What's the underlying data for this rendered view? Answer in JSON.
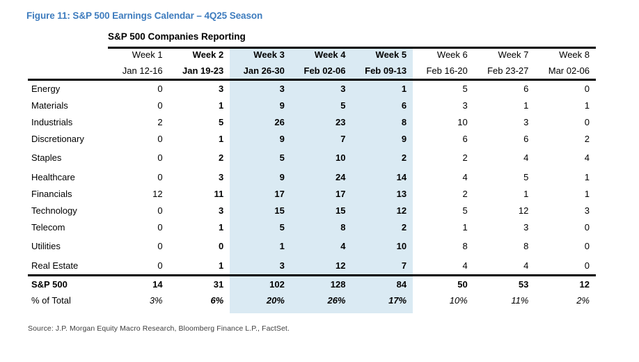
{
  "figure_title": "Figure 11: S&P 500 Earnings Calendar – 4Q25 Season",
  "table_title": "S&P 500 Companies Reporting",
  "colors": {
    "title_blue": "#3E7CBE",
    "highlight_blue": "#DAEAF3",
    "rule_black": "#000000"
  },
  "highlighted_weeks": [
    "Week 3",
    "Week 4",
    "Week 5"
  ],
  "bold_weeks": [
    "Week 2",
    "Week 3",
    "Week 4",
    "Week 5"
  ],
  "table": {
    "columns": [
      {
        "week": "Week 1",
        "dates": "Jan 12-16"
      },
      {
        "week": "Week 2",
        "dates": "Jan 19-23"
      },
      {
        "week": "Week 3",
        "dates": "Jan 26-30"
      },
      {
        "week": "Week 4",
        "dates": "Feb 02-06"
      },
      {
        "week": "Week 5",
        "dates": "Feb 09-13"
      },
      {
        "week": "Week 6",
        "dates": "Feb 16-20"
      },
      {
        "week": "Week 7",
        "dates": "Feb 23-27"
      },
      {
        "week": "Week 8",
        "dates": "Mar 02-06"
      }
    ],
    "rows": [
      {
        "label": "Energy",
        "values": [
          0,
          3,
          3,
          3,
          1,
          5,
          6,
          0
        ]
      },
      {
        "label": "Materials",
        "values": [
          0,
          1,
          9,
          5,
          6,
          3,
          1,
          1
        ]
      },
      {
        "label": "Industrials",
        "values": [
          2,
          5,
          26,
          23,
          8,
          10,
          3,
          0
        ]
      },
      {
        "label": "Discretionary",
        "values": [
          0,
          1,
          9,
          7,
          9,
          6,
          6,
          2
        ]
      },
      {
        "label": "Staples",
        "values": [
          0,
          2,
          5,
          10,
          2,
          2,
          4,
          4
        ]
      },
      {
        "label": "Healthcare",
        "values": [
          0,
          3,
          9,
          24,
          14,
          4,
          5,
          1
        ]
      },
      {
        "label": "Financials",
        "values": [
          12,
          11,
          17,
          17,
          13,
          2,
          1,
          1
        ]
      },
      {
        "label": "Technology",
        "values": [
          0,
          3,
          15,
          15,
          12,
          5,
          12,
          3
        ]
      },
      {
        "label": "Telecom",
        "values": [
          0,
          1,
          5,
          8,
          2,
          1,
          3,
          0
        ]
      },
      {
        "label": "Utilities",
        "values": [
          0,
          0,
          1,
          4,
          10,
          8,
          8,
          0
        ]
      },
      {
        "label": "Real Estate",
        "values": [
          0,
          1,
          3,
          12,
          7,
          4,
          4,
          0
        ]
      }
    ],
    "totals": {
      "label": "S&P 500",
      "values": [
        14,
        31,
        102,
        128,
        84,
        50,
        53,
        12
      ]
    },
    "pct_of_total": {
      "label": "% of Total",
      "values": [
        "3%",
        "6%",
        "20%",
        "26%",
        "17%",
        "10%",
        "11%",
        "2%"
      ]
    }
  },
  "source": "Source: J.P. Morgan Equity Macro Research, Bloomberg Finance L.P., FactSet."
}
